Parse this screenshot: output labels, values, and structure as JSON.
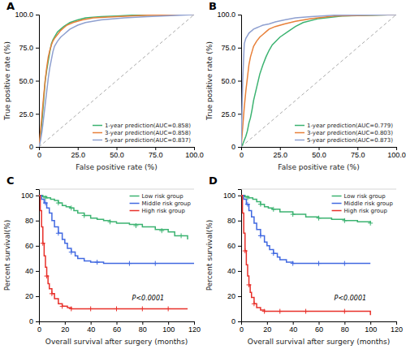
{
  "chart_data": [
    {
      "type": "line",
      "title": "A",
      "xlabel": "False positive rate  (%)",
      "ylabel": "True positive rate (%)",
      "xlim": [
        0,
        100
      ],
      "ylim": [
        0,
        100
      ],
      "xticks": [
        0,
        {
          "value": 25,
          "label": "25.0"
        },
        {
          "value": 50,
          "label": "50.0"
        },
        {
          "value": 75,
          "label": "75.0"
        },
        {
          "value": 100,
          "label": "100.0"
        }
      ],
      "yticks": [
        0,
        {
          "value": 25,
          "label": "25.0"
        },
        {
          "value": 50,
          "label": "50.0"
        },
        {
          "value": 75,
          "label": "75.0"
        },
        {
          "value": 100,
          "label": "100.0"
        }
      ],
      "grid": false,
      "legend": "lower right",
      "series": [
        {
          "color": "#aaaaaa",
          "line_style": "dashed",
          "x": [
            0,
            100
          ],
          "values": [
            0,
            100
          ]
        },
        {
          "name": "1-year prediction(AUC=0.858)",
          "color": "#3cb371",
          "x": [
            0,
            1,
            2,
            3,
            4,
            5,
            6,
            7,
            8,
            9,
            10,
            12,
            14,
            16,
            18,
            20,
            25,
            30,
            40,
            50,
            60,
            100
          ],
          "values": [
            0,
            8,
            20,
            35,
            50,
            58,
            65,
            72,
            78,
            81,
            83,
            87,
            89,
            91,
            92.5,
            94,
            96,
            97.5,
            98.5,
            99,
            99.5,
            100
          ]
        },
        {
          "name": "3-year prediction(AUC=0.858)",
          "color": "#e8803a",
          "x": [
            0,
            1,
            2,
            3,
            4,
            5,
            6,
            7,
            8,
            9,
            10,
            12,
            14,
            16,
            18,
            22,
            28,
            35,
            50,
            70,
            100
          ],
          "values": [
            0,
            12,
            25,
            38,
            50,
            60,
            68,
            73,
            77,
            80,
            82,
            85,
            88,
            90,
            92,
            94,
            96,
            97.5,
            98.5,
            99.5,
            100
          ]
        },
        {
          "name": "5-year prediction(AUC=0.837)",
          "color": "#8fa0d0",
          "x": [
            0,
            1,
            2,
            3,
            4,
            5,
            6,
            7,
            8,
            9,
            10,
            12,
            14,
            16,
            18,
            20,
            25,
            30,
            40,
            55,
            70,
            100
          ],
          "values": [
            0,
            5,
            12,
            22,
            32,
            42,
            52,
            60,
            66,
            72,
            76,
            80,
            83,
            85,
            87,
            89,
            92,
            94,
            96,
            97.5,
            98.5,
            100
          ]
        }
      ]
    },
    {
      "type": "line",
      "title": "B",
      "xlabel": "False positive rate  (%)",
      "ylabel": "True positive rate (%)",
      "xlim": [
        0,
        100
      ],
      "ylim": [
        0,
        100
      ],
      "xticks": [
        0,
        {
          "value": 25,
          "label": "25.0"
        },
        {
          "value": 50,
          "label": "50.0"
        },
        {
          "value": 75,
          "label": "75.0"
        },
        {
          "value": 100,
          "label": "100.0"
        }
      ],
      "yticks": [
        0,
        {
          "value": 25,
          "label": "25.0"
        },
        {
          "value": 50,
          "label": "50.0"
        },
        {
          "value": 75,
          "label": "75.0"
        },
        {
          "value": 100,
          "label": "100.0"
        }
      ],
      "grid": false,
      "legend": "lower right",
      "series": [
        {
          "color": "#aaaaaa",
          "line_style": "dashed",
          "x": [
            0,
            100
          ],
          "values": [
            0,
            100
          ]
        },
        {
          "name": "1-year prediction(AUC=0.779)",
          "color": "#3cb371",
          "x": [
            0,
            1,
            2,
            3,
            4,
            5,
            6,
            7,
            8,
            10,
            12,
            14,
            16,
            18,
            20,
            25,
            30,
            35,
            40,
            50,
            65,
            100
          ],
          "values": [
            0,
            2,
            5,
            8,
            12,
            18,
            22,
            28,
            35,
            45,
            55,
            62,
            68,
            73,
            77,
            83,
            87,
            91,
            94,
            97,
            99,
            100
          ]
        },
        {
          "name": "3-year prediction(AUC=0.803)",
          "color": "#e8803a",
          "x": [
            0,
            1,
            2,
            3,
            4,
            5,
            6,
            7,
            8,
            10,
            12,
            14,
            16,
            18,
            22,
            28,
            35,
            45,
            60,
            100
          ],
          "values": [
            0,
            15,
            30,
            42,
            52,
            62,
            68,
            72,
            76,
            80,
            83,
            85,
            87,
            89,
            91,
            93,
            95,
            97,
            99,
            100
          ]
        },
        {
          "name": "5-year prediction(AUC=0.873)",
          "color": "#8fa0d0",
          "x": [
            0,
            1,
            2,
            3,
            4,
            5,
            6,
            7,
            8,
            10,
            12,
            14,
            18,
            22,
            28,
            35,
            45,
            60,
            100
          ],
          "values": [
            0,
            50,
            78,
            82,
            84,
            86,
            87,
            88,
            89,
            90,
            91,
            92,
            93,
            94.5,
            96,
            97.5,
            98.5,
            99.5,
            100
          ]
        }
      ]
    },
    {
      "type": "step",
      "title": "C",
      "xlabel": "Overall survival after surgery (months)",
      "ylabel": "Percent survival(%)",
      "annotation": "P<0.0001",
      "xlim": [
        0,
        120
      ],
      "ylim": [
        0,
        105
      ],
      "xticks": [
        0,
        20,
        40,
        60,
        80,
        100,
        120
      ],
      "yticks": [
        0,
        20,
        40,
        60,
        80,
        100
      ],
      "grid": false,
      "legend": "upper right",
      "series": [
        {
          "name": "Low risk group",
          "color": "#3cb371",
          "x": [
            0,
            3,
            6,
            9,
            12,
            15,
            18,
            21,
            24,
            27,
            30,
            35,
            40,
            45,
            50,
            55,
            60,
            70,
            80,
            90,
            100,
            105,
            115
          ],
          "values": [
            100,
            99,
            98,
            97,
            96,
            94,
            92,
            91,
            90,
            88,
            86,
            84,
            82,
            81,
            80,
            79,
            78,
            77,
            75,
            73,
            71,
            68,
            65
          ]
        },
        {
          "type": "scatter",
          "marker": "+",
          "color": "#3cb371",
          "x": [
            5,
            15,
            25,
            35,
            55,
            75,
            95,
            110
          ],
          "values": [
            98,
            94,
            90,
            84,
            79,
            76,
            72,
            68
          ]
        },
        {
          "name": "Middle risk group",
          "color": "#4169e1",
          "x": [
            0,
            2,
            4,
            6,
            8,
            10,
            12,
            15,
            18,
            20,
            22,
            25,
            28,
            30,
            35,
            40,
            50,
            60,
            80,
            100,
            120
          ],
          "values": [
            100,
            97,
            94,
            90,
            86,
            80,
            75,
            70,
            65,
            62,
            58,
            55,
            52,
            50,
            48,
            47,
            46,
            46,
            46,
            46,
            46
          ]
        },
        {
          "type": "scatter",
          "marker": "+",
          "color": "#4169e1",
          "x": [
            5,
            15,
            25,
            45,
            70,
            90
          ],
          "values": [
            94,
            70,
            55,
            47,
            46,
            46
          ]
        },
        {
          "name": "High risk group",
          "color": "#e8302a",
          "x": [
            0,
            1,
            2,
            3,
            4,
            5,
            6,
            7,
            8,
            10,
            12,
            15,
            18,
            22,
            25,
            30,
            40,
            60,
            80,
            100,
            115
          ],
          "values": [
            100,
            88,
            75,
            62,
            52,
            43,
            36,
            30,
            26,
            22,
            18,
            14,
            12,
            11,
            10,
            10,
            10,
            10,
            10,
            10,
            10
          ]
        },
        {
          "type": "scatter",
          "marker": "+",
          "color": "#e8302a",
          "x": [
            3,
            6,
            10,
            18,
            25,
            40,
            60,
            80,
            100
          ],
          "values": [
            62,
            36,
            22,
            12,
            10,
            10,
            10,
            10,
            10
          ]
        }
      ]
    },
    {
      "type": "step",
      "title": "D",
      "xlabel": "Overall survival after surgery (months)",
      "ylabel": "Percent survival(%)",
      "annotation": "P<0.0001",
      "xlim": [
        0,
        120
      ],
      "ylim": [
        0,
        105
      ],
      "xticks": [
        0,
        20,
        40,
        60,
        80,
        100,
        120
      ],
      "yticks": [
        0,
        20,
        40,
        60,
        80,
        100
      ],
      "grid": false,
      "legend": "upper right",
      "series": [
        {
          "name": "Low risk group",
          "color": "#3cb371",
          "x": [
            0,
            3,
            6,
            9,
            12,
            15,
            18,
            21,
            24,
            30,
            40,
            50,
            60,
            70,
            80,
            90,
            100
          ],
          "values": [
            100,
            99,
            98,
            97,
            95,
            93,
            91,
            90,
            89,
            87,
            85,
            83,
            82,
            81,
            80,
            79,
            78
          ]
        },
        {
          "type": "scatter",
          "marker": "+",
          "color": "#3cb371",
          "x": [
            5,
            15,
            25,
            40,
            60,
            80,
            100
          ],
          "values": [
            98,
            93,
            89,
            85,
            82,
            80,
            78
          ]
        },
        {
          "name": "Middle risk group",
          "color": "#4169e1",
          "x": [
            0,
            2,
            4,
            6,
            8,
            10,
            12,
            15,
            18,
            20,
            22,
            25,
            28,
            30,
            35,
            40,
            50,
            60,
            80,
            100
          ],
          "values": [
            100,
            97,
            93,
            88,
            83,
            78,
            73,
            68,
            63,
            60,
            57,
            54,
            51,
            49,
            47,
            46,
            46,
            46,
            46,
            46
          ]
        },
        {
          "type": "scatter",
          "marker": "+",
          "color": "#4169e1",
          "x": [
            5,
            15,
            25,
            40,
            60,
            80
          ],
          "values": [
            93,
            68,
            54,
            46,
            46,
            46
          ]
        },
        {
          "name": "High risk group",
          "color": "#e8302a",
          "x": [
            0,
            1,
            2,
            3,
            4,
            5,
            6,
            7,
            8,
            10,
            12,
            15,
            18,
            22,
            30,
            50,
            80,
            100
          ],
          "values": [
            100,
            86,
            70,
            56,
            45,
            36,
            29,
            23,
            19,
            14,
            11,
            9,
            8,
            8,
            8,
            8,
            8,
            5
          ]
        },
        {
          "type": "scatter",
          "marker": "+",
          "color": "#e8302a",
          "x": [
            3,
            6,
            10,
            18,
            30,
            50,
            80
          ],
          "values": [
            56,
            29,
            14,
            8,
            8,
            8,
            8
          ]
        }
      ]
    }
  ]
}
